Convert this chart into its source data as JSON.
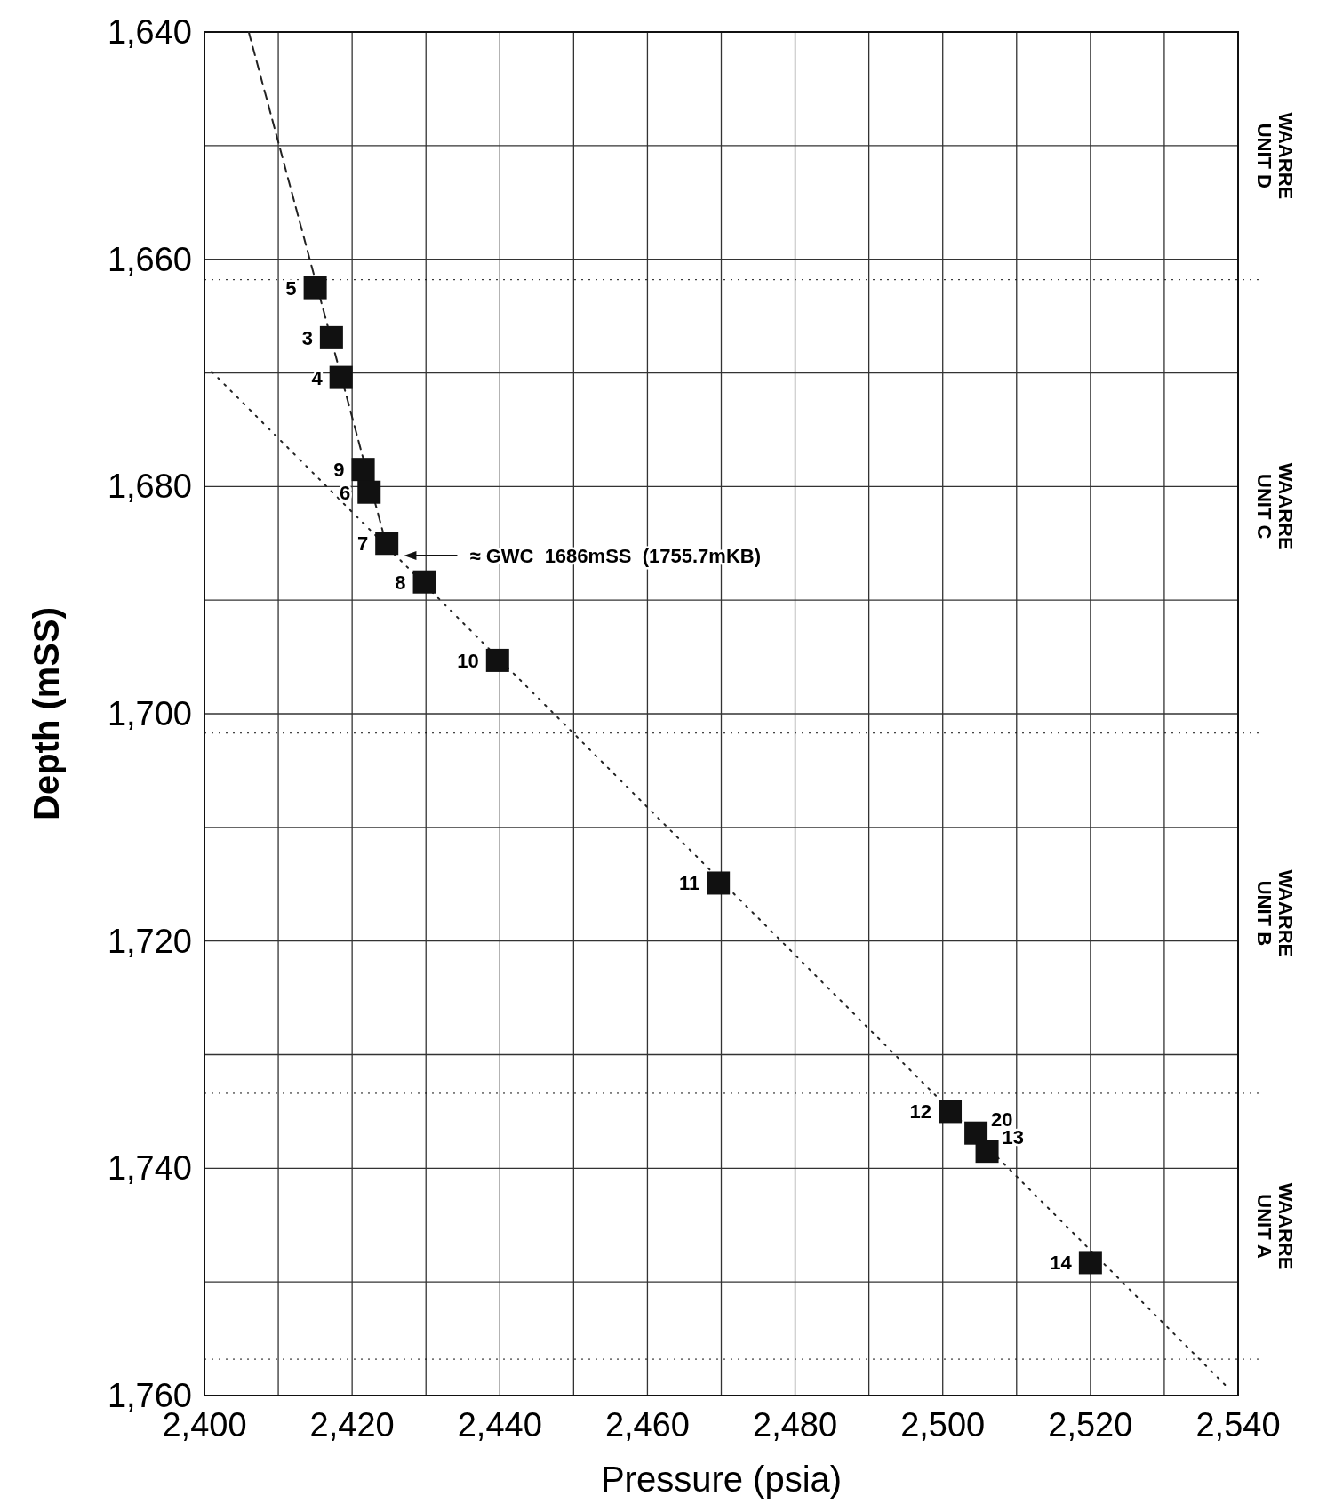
{
  "chart_data": {
    "type": "scatter",
    "xlabel": "Pressure (psia)",
    "ylabel": "Depth (mSS)",
    "xlim": [
      2400,
      2540
    ],
    "ylim": [
      1760,
      1640
    ],
    "xticks": [
      {
        "value": 2400,
        "label": "2,400"
      },
      {
        "value": 2410,
        "label": null
      },
      {
        "value": 2420,
        "label": "2,420"
      },
      {
        "value": 2430,
        "label": null
      },
      {
        "value": 2440,
        "label": "2,440"
      },
      {
        "value": 2450,
        "label": null
      },
      {
        "value": 2460,
        "label": "2,460"
      },
      {
        "value": 2470,
        "label": null
      },
      {
        "value": 2480,
        "label": "2,480"
      },
      {
        "value": 2490,
        "label": null
      },
      {
        "value": 2500,
        "label": "2,500"
      },
      {
        "value": 2510,
        "label": null
      },
      {
        "value": 2520,
        "label": "2,520"
      },
      {
        "value": 2530,
        "label": null
      },
      {
        "value": 2540,
        "label": "2,540"
      }
    ],
    "yticks": [
      {
        "value": 1640,
        "label": "1,640"
      },
      {
        "value": 1650,
        "label": null
      },
      {
        "value": 1660,
        "label": "1,660"
      },
      {
        "value": 1670,
        "label": null
      },
      {
        "value": 1680,
        "label": "1,680"
      },
      {
        "value": 1690,
        "label": null
      },
      {
        "value": 1700,
        "label": "1,700"
      },
      {
        "value": 1710,
        "label": null
      },
      {
        "value": 1720,
        "label": "1,720"
      },
      {
        "value": 1730,
        "label": null
      },
      {
        "value": 1740,
        "label": "1,740"
      },
      {
        "value": 1750,
        "label": null
      },
      {
        "value": 1760,
        "label": "1,760"
      }
    ],
    "ref_lines": [
      {
        "axis": "y",
        "value": 1661.8
      },
      {
        "axis": "y",
        "value": 1701.7
      },
      {
        "axis": "y",
        "value": 1733.4
      },
      {
        "axis": "y",
        "value": 1756.8
      }
    ],
    "grid": true,
    "series": [
      {
        "type": "line",
        "line_style": "dashed",
        "color": "#222222",
        "x": [
          2406,
          2425
        ],
        "values": [
          1640,
          1686
        ]
      },
      {
        "type": "line",
        "line_style": "dotted",
        "color": "#222222",
        "x": [
          2401,
          2538.3
        ],
        "values": [
          1669.9,
          1759.1
        ]
      },
      {
        "marker": "square",
        "color": "#111111",
        "x": [
          2415,
          2417.2,
          2418.5,
          2421.5,
          2422.3,
          2424.7,
          2429.8,
          2439.7,
          2469.6,
          2501,
          2504.5,
          2506,
          2520
        ],
        "values": [
          1662.5,
          1666.9,
          1670.4,
          1678.5,
          1680.5,
          1685,
          1688.4,
          1695.3,
          1714.9,
          1735,
          1736.9,
          1738.5,
          1748.3
        ]
      }
    ],
    "annotations": [
      "≈ GWC  1686mSS  (1755.7mKB)",
      "WAARRE\nUNIT D",
      "WAARRE\nUNIT C",
      "WAARRE\nUNIT B",
      "WAARRE\nUNIT A",
      {
        "text": "5",
        "x": 2415,
        "y": 1662.5
      },
      {
        "text": "3",
        "x": 2417.2,
        "y": 1666.9
      },
      {
        "text": "4",
        "x": 2418.5,
        "y": 1670.4
      },
      {
        "text": "9",
        "x": 2421.5,
        "y": 1678.5
      },
      {
        "text": "6",
        "x": 2422.3,
        "y": 1680.5
      },
      {
        "text": "7",
        "x": 2424.7,
        "y": 1685
      },
      {
        "text": "8",
        "x": 2429.8,
        "y": 1688.4
      },
      {
        "text": "10",
        "x": 2439.7,
        "y": 1695.3
      },
      {
        "text": "11",
        "x": 2469.6,
        "y": 1714.9
      },
      {
        "text": "12",
        "x": 2501,
        "y": 1735
      },
      {
        "text": "20",
        "x": 2504.5,
        "y": 1736.9
      },
      {
        "text": "13",
        "x": 2506,
        "y": 1738.5
      },
      {
        "text": "14",
        "x": 2520,
        "y": 1748.3
      }
    ]
  }
}
